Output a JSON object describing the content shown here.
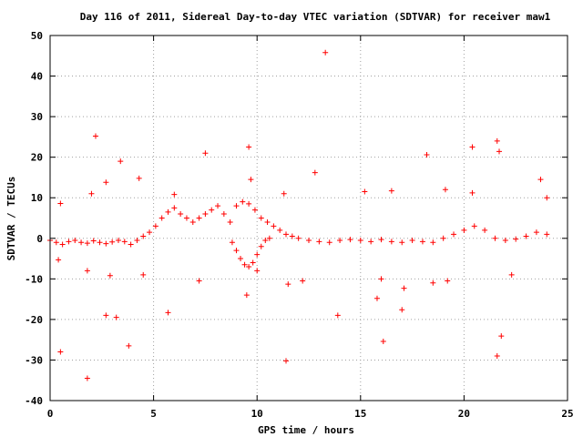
{
  "chart_data": {
    "type": "scatter",
    "title": "Day 116 of 2011, Sidereal Day-to-day VTEC variation (SDTVAR) for receiver maw1",
    "xlabel": "GPS time / hours",
    "ylabel": "SDTVAR / TECUs",
    "xlim": [
      0,
      25
    ],
    "ylim": [
      -40,
      50
    ],
    "xticks": [
      "0",
      "5",
      "10",
      "15",
      "20",
      "25"
    ],
    "yticks": [
      "-40",
      "-30",
      "-20",
      "-10",
      "0",
      "10",
      "20",
      "30",
      "40",
      "50"
    ],
    "grid": true,
    "marker": "+",
    "color": "#ff0000",
    "series": [
      {
        "name": "SDTVAR",
        "band_points": [
          [
            0.0,
            -0.5
          ],
          [
            0.3,
            -1
          ],
          [
            0.6,
            -1.5
          ],
          [
            0.9,
            -0.8
          ],
          [
            1.2,
            -0.5
          ],
          [
            1.5,
            -1
          ],
          [
            1.8,
            -1.2
          ],
          [
            2.1,
            -0.6
          ],
          [
            2.4,
            -1
          ],
          [
            2.7,
            -1.3
          ],
          [
            3.0,
            -0.9
          ],
          [
            3.3,
            -0.5
          ],
          [
            3.6,
            -0.8
          ],
          [
            3.9,
            -1.5
          ],
          [
            4.2,
            -0.5
          ],
          [
            4.5,
            0.5
          ],
          [
            4.8,
            1.5
          ],
          [
            5.1,
            3
          ],
          [
            5.4,
            5
          ],
          [
            5.7,
            6.5
          ],
          [
            6.0,
            7.5
          ],
          [
            6.3,
            6
          ],
          [
            6.6,
            5
          ],
          [
            6.9,
            4
          ],
          [
            7.2,
            5
          ],
          [
            7.5,
            6
          ],
          [
            7.8,
            7
          ],
          [
            8.1,
            8
          ],
          [
            8.4,
            6
          ],
          [
            8.7,
            4
          ],
          [
            9.0,
            8
          ],
          [
            9.3,
            9
          ],
          [
            9.6,
            8.5
          ],
          [
            9.9,
            7
          ],
          [
            10.2,
            5
          ],
          [
            10.5,
            4
          ],
          [
            10.8,
            3
          ],
          [
            11.1,
            2
          ],
          [
            11.4,
            1
          ],
          [
            11.7,
            0.5
          ],
          [
            12.0,
            0
          ],
          [
            12.5,
            -0.5
          ],
          [
            13.0,
            -0.8
          ],
          [
            13.5,
            -1
          ],
          [
            14.0,
            -0.5
          ],
          [
            14.5,
            -0.3
          ],
          [
            15.0,
            -0.5
          ],
          [
            15.5,
            -0.8
          ],
          [
            16.0,
            -0.3
          ],
          [
            16.5,
            -0.8
          ],
          [
            17.0,
            -1
          ],
          [
            17.5,
            -0.5
          ],
          [
            18.0,
            -0.8
          ],
          [
            18.5,
            -1
          ],
          [
            19.0,
            0
          ],
          [
            19.5,
            1
          ],
          [
            20.0,
            2
          ],
          [
            20.5,
            3
          ],
          [
            21.0,
            2
          ],
          [
            21.5,
            0
          ],
          [
            22.0,
            -0.5
          ],
          [
            22.5,
            -0.2
          ],
          [
            23.0,
            0.5
          ],
          [
            23.5,
            1.5
          ],
          [
            24.0,
            1
          ]
        ],
        "lower_arc": [
          [
            8.8,
            -1
          ],
          [
            9.0,
            -3
          ],
          [
            9.2,
            -5
          ],
          [
            9.4,
            -6.5
          ],
          [
            9.6,
            -7
          ],
          [
            9.8,
            -6
          ],
          [
            10.0,
            -4
          ],
          [
            10.2,
            -2
          ],
          [
            10.4,
            -0.5
          ],
          [
            10.6,
            0
          ]
        ],
        "outliers": [
          [
            13.3,
            45.8
          ],
          [
            2.2,
            25.2
          ],
          [
            3.4,
            19
          ],
          [
            7.5,
            21
          ],
          [
            9.6,
            22.5
          ],
          [
            12.8,
            16.2
          ],
          [
            18.2,
            20.6
          ],
          [
            20.4,
            22.5
          ],
          [
            21.6,
            24
          ],
          [
            21.7,
            21.4
          ],
          [
            0.5,
            8.6
          ],
          [
            0.4,
            -5.3
          ],
          [
            0.5,
            -28
          ],
          [
            1.8,
            -34.5
          ],
          [
            2.7,
            -19
          ],
          [
            3.2,
            -19.5
          ],
          [
            3.8,
            -26.5
          ],
          [
            5.7,
            -18.3
          ],
          [
            11.4,
            -30.2
          ],
          [
            13.9,
            -19
          ],
          [
            16.1,
            -25.4
          ],
          [
            17.0,
            -17.6
          ],
          [
            21.6,
            -29
          ],
          [
            21.8,
            -24.1
          ],
          [
            2.0,
            11
          ],
          [
            2.7,
            13.8
          ],
          [
            4.3,
            14.8
          ],
          [
            6.0,
            10.8
          ],
          [
            9.7,
            14.5
          ],
          [
            11.3,
            11
          ],
          [
            15.2,
            11.5
          ],
          [
            16.5,
            11.7
          ],
          [
            19.1,
            12
          ],
          [
            20.4,
            11.2
          ],
          [
            23.7,
            14.5
          ],
          [
            24.0,
            10
          ],
          [
            1.8,
            -8
          ],
          [
            2.9,
            -9.2
          ],
          [
            4.5,
            -9
          ],
          [
            7.2,
            -10.5
          ],
          [
            9.5,
            -14
          ],
          [
            11.5,
            -11.3
          ],
          [
            12.2,
            -10.5
          ],
          [
            16.0,
            -10
          ],
          [
            18.5,
            -11
          ],
          [
            19.2,
            -10.5
          ],
          [
            22.3,
            -9
          ],
          [
            15.8,
            -14.8
          ],
          [
            17.1,
            -12.3
          ],
          [
            10.0,
            -8
          ]
        ]
      }
    ]
  }
}
